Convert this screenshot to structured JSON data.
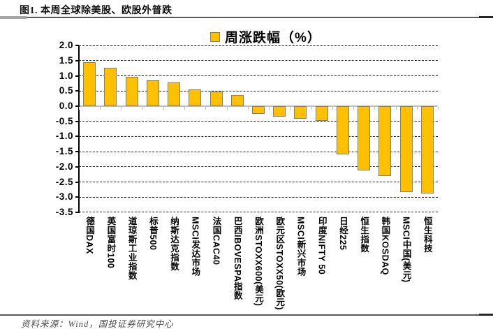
{
  "header": {
    "title": "图1. 本周全球除美股、欧股外普跌"
  },
  "legend": {
    "label": "周涨跌幅（%）"
  },
  "footer": {
    "source": "资料来源：Wind，国投证券研究中心"
  },
  "colors": {
    "bar_fill": "#FFC000",
    "bar_border": "#7f7f7f",
    "zero_axis": "#bfbfbf",
    "gridline": "#262626"
  },
  "chart_data": {
    "type": "bar",
    "title": "",
    "legend_entries": [
      "周涨跌幅（%）"
    ],
    "legend_position": "top-center",
    "xlabel": "",
    "ylabel": "",
    "ylim": [
      -3.5,
      2.0
    ],
    "ytick_step": 0.5,
    "grid": "horizontal-dashed",
    "categories": [
      "德国DAX",
      "英国富时100",
      "道琼斯工业指数",
      "标普500",
      "纳斯达克指数",
      "MSCI发达市场",
      "法国CAC40",
      "巴西IBOVESPA指数",
      "欧洲STOXX600(美元)",
      "欧元区STOXX50(欧元)",
      "MSCI新兴市场",
      "印度NIFTY 50",
      "日经225",
      "恒生指数",
      "韩国KOSDAQ",
      "MSCI中国(美元)",
      "恒生科技"
    ],
    "values": [
      1.45,
      1.26,
      0.96,
      0.86,
      0.79,
      0.56,
      0.48,
      0.38,
      -0.25,
      -0.35,
      -0.41,
      -0.48,
      -1.6,
      -2.11,
      -2.3,
      -2.83,
      -2.88
    ]
  }
}
